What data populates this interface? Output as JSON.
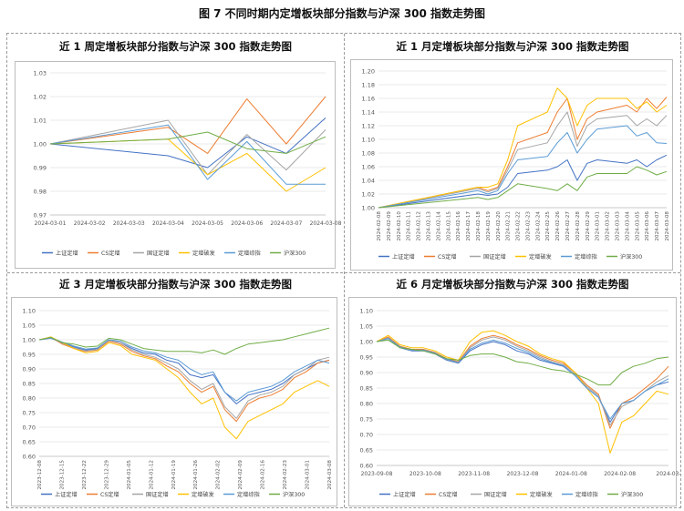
{
  "figure_title": "图 7 不同时期内定增板块部分指数与沪深 300 指数走势图",
  "colors": {
    "上证定增": "#4472c4",
    "CS定增": "#ed7d31",
    "国证定增": "#a5a5a5",
    "定增破发": "#ffc000",
    "定增综指": "#5b9bd5",
    "沪深300": "#70ad47"
  },
  "legend": [
    "上证定增",
    "CS定增",
    "国证定增",
    "定增破发",
    "定增综指",
    "沪深300"
  ],
  "panels": [
    {
      "title": "近 1 周定增板块部分指数与沪深 300 指数走势图",
      "chart_data": {
        "type": "line",
        "x": [
          "2024-03-01",
          "2024-03-02",
          "2024-03-03",
          "2024-03-04",
          "2024-03-05",
          "2024-03-06",
          "2024-03-07",
          "2024-03-08"
        ],
        "x_ticks": [
          "2024-03-01",
          "2024-03-02",
          "2024-03-03",
          "2024-03-04",
          "2024-03-05",
          "2024-03-06",
          "2024-03-07",
          "2024-03-08"
        ],
        "ylim": [
          0.97,
          1.03
        ],
        "y_ticks": [
          0.97,
          0.98,
          0.99,
          1.0,
          1.01,
          1.02,
          1.03
        ],
        "y_decimals": 2,
        "series": [
          {
            "name": "上证定增",
            "values": [
              1.0,
              null,
              null,
              0.995,
              0.99,
              1.003,
              0.996,
              1.011
            ]
          },
          {
            "name": "CS定增",
            "values": [
              1.0,
              null,
              null,
              1.007,
              0.996,
              1.019,
              1.0,
              1.02
            ]
          },
          {
            "name": "国证定增",
            "values": [
              1.0,
              null,
              null,
              1.01,
              0.987,
              1.004,
              0.989,
              1.006
            ]
          },
          {
            "name": "定增破发",
            "values": [
              1.0,
              null,
              null,
              1.002,
              0.987,
              0.996,
              0.98,
              0.99
            ]
          },
          {
            "name": "定增综指",
            "values": [
              1.0,
              null,
              null,
              1.008,
              0.985,
              1.001,
              0.983,
              0.983
            ]
          },
          {
            "name": "沪深300",
            "values": [
              1.0,
              null,
              null,
              1.002,
              1.005,
              0.998,
              0.996,
              1.003
            ]
          }
        ],
        "legend_position": "bottom"
      }
    },
    {
      "title": "近 1 月定增板块部分指数与沪深 300 指数走势图",
      "chart_data": {
        "type": "line",
        "x": [
          "2024-02-08",
          "2024-02-09",
          "2024-02-10",
          "2024-02-11",
          "2024-02-12",
          "2024-02-13",
          "2024-02-14",
          "2024-02-15",
          "2024-02-16",
          "2024-02-17",
          "2024-02-18",
          "2024-02-19",
          "2024-02-20",
          "2024-02-21",
          "2024-02-22",
          "2024-02-23",
          "2024-02-24",
          "2024-02-25",
          "2024-02-26",
          "2024-02-27",
          "2024-02-28",
          "2024-02-29",
          "2024-03-01",
          "2024-03-02",
          "2024-03-03",
          "2024-03-04",
          "2024-03-05",
          "2024-03-06",
          "2024-03-07",
          "2024-03-08"
        ],
        "x_ticks": [
          "2024-02-08",
          "2024-02-09",
          "2024-02-10",
          "2024-02-11",
          "2024-02-12",
          "2024-02-13",
          "2024-02-14",
          "2024-02-15",
          "2024-02-16",
          "2024-02-17",
          "2024-02-18",
          "2024-02-19",
          "2024-02-20",
          "2024-02-21",
          "2024-02-22",
          "2024-02-23",
          "2024-02-24",
          "2024-02-25",
          "2024-02-26",
          "2024-02-27",
          "2024-02-28",
          "2024-02-29",
          "2024-03-01",
          "2024-03-02",
          "2024-03-03",
          "2024-03-04",
          "2024-03-05",
          "2024-03-06",
          "2024-03-07",
          "2024-03-08"
        ],
        "ylim": [
          1.0,
          1.2
        ],
        "y_ticks": [
          1.0,
          1.02,
          1.04,
          1.06,
          1.08,
          1.1,
          1.12,
          1.14,
          1.16,
          1.18,
          1.2
        ],
        "y_decimals": 2,
        "series": [
          {
            "name": "上证定增",
            "values": [
              1.0,
              null,
              null,
              null,
              null,
              null,
              null,
              null,
              null,
              null,
              1.02,
              1.018,
              1.02,
              1.03,
              1.05,
              null,
              null,
              1.055,
              1.06,
              1.07,
              1.04,
              1.065,
              1.07,
              null,
              null,
              1.065,
              1.07,
              1.06,
              1.07,
              1.077
            ]
          },
          {
            "name": "CS定增",
            "values": [
              1.0,
              null,
              null,
              null,
              null,
              null,
              null,
              null,
              null,
              null,
              1.03,
              1.025,
              1.03,
              1.06,
              1.095,
              null,
              null,
              1.11,
              1.14,
              1.16,
              1.1,
              1.13,
              1.14,
              null,
              null,
              1.15,
              1.14,
              1.16,
              1.145,
              1.162
            ]
          },
          {
            "name": "国证定增",
            "values": [
              1.0,
              null,
              null,
              null,
              null,
              null,
              null,
              null,
              null,
              null,
              1.028,
              1.023,
              1.028,
              1.055,
              1.085,
              null,
              null,
              1.095,
              1.12,
              1.14,
              1.09,
              1.12,
              1.13,
              null,
              null,
              1.135,
              1.12,
              1.13,
              1.12,
              1.135
            ]
          },
          {
            "name": "定增破发",
            "values": [
              1.0,
              null,
              null,
              null,
              null,
              null,
              null,
              null,
              null,
              null,
              1.03,
              1.03,
              1.035,
              1.07,
              1.12,
              null,
              null,
              1.14,
              1.175,
              1.16,
              1.12,
              1.15,
              1.16,
              null,
              null,
              1.16,
              1.145,
              1.155,
              1.14,
              1.15
            ]
          },
          {
            "name": "定增综指",
            "values": [
              1.0,
              null,
              null,
              null,
              null,
              null,
              null,
              null,
              null,
              null,
              1.025,
              1.02,
              1.025,
              1.05,
              1.07,
              null,
              null,
              1.075,
              1.095,
              1.11,
              1.08,
              1.1,
              1.115,
              null,
              null,
              1.12,
              1.105,
              1.11,
              1.095,
              1.094
            ]
          },
          {
            "name": "沪深300",
            "values": [
              1.0,
              null,
              null,
              null,
              null,
              null,
              null,
              null,
              null,
              null,
              1.015,
              1.012,
              1.015,
              1.025,
              1.035,
              null,
              null,
              1.028,
              1.025,
              1.035,
              1.025,
              1.045,
              1.05,
              null,
              null,
              1.05,
              1.06,
              1.055,
              1.048,
              1.053
            ]
          }
        ],
        "legend_position": "bottom"
      }
    },
    {
      "title": "近 3 月定增板块部分指数与沪深 300 指数走势图",
      "chart_data": {
        "type": "line",
        "x_ticks": [
          "2023-12-08",
          "2023-12-15",
          "2023-12-22",
          "2023-12-29",
          "2024-01-05",
          "2024-01-12",
          "2024-01-19",
          "2024-01-26",
          "2024-02-02",
          "2024-02-09",
          "2024-02-16",
          "2024-02-23",
          "2024-03-01",
          "2024-03-08"
        ],
        "ylim": [
          0.6,
          1.1
        ],
        "y_ticks": [
          0.6,
          0.65,
          0.7,
          0.75,
          0.8,
          0.85,
          0.9,
          0.95,
          1.0,
          1.05,
          1.1
        ],
        "y_decimals": 2,
        "series": [
          {
            "name": "上证定增",
            "values": [
              1.0,
              1.005,
              0.99,
              0.975,
              0.965,
              0.97,
              1.0,
              0.99,
              0.97,
              0.955,
              0.95,
              0.93,
              0.92,
              0.88,
              0.87,
              0.88,
              0.82,
              0.78,
              0.81,
              0.82,
              0.83,
              0.85,
              0.88,
              0.9,
              0.92,
              0.93
            ]
          },
          {
            "name": "CS定增",
            "values": [
              1.0,
              1.008,
              0.985,
              0.97,
              0.96,
              0.965,
              0.995,
              0.985,
              0.96,
              0.945,
              0.935,
              0.91,
              0.89,
              0.85,
              0.82,
              0.84,
              0.76,
              0.72,
              0.78,
              0.8,
              0.81,
              0.83,
              0.87,
              0.89,
              0.92,
              0.93
            ]
          },
          {
            "name": "国证定增",
            "values": [
              1.0,
              1.007,
              0.988,
              0.972,
              0.962,
              0.967,
              0.998,
              0.99,
              0.965,
              0.95,
              0.94,
              0.92,
              0.9,
              0.86,
              0.83,
              0.85,
              0.77,
              0.73,
              0.79,
              0.81,
              0.82,
              0.84,
              0.88,
              0.9,
              0.93,
              0.94
            ]
          },
          {
            "name": "定增破发",
            "values": [
              1.0,
              1.01,
              0.99,
              0.97,
              0.955,
              0.96,
              0.99,
              0.98,
              0.95,
              0.94,
              0.93,
              0.9,
              0.87,
              0.82,
              0.78,
              0.8,
              0.7,
              0.66,
              0.72,
              0.74,
              0.76,
              0.78,
              0.82,
              0.84,
              0.86,
              0.84
            ]
          },
          {
            "name": "定增综指",
            "values": [
              1.0,
              1.006,
              0.992,
              0.978,
              0.968,
              0.972,
              1.0,
              0.995,
              0.975,
              0.962,
              0.955,
              0.94,
              0.93,
              0.9,
              0.88,
              0.89,
              0.82,
              0.79,
              0.82,
              0.83,
              0.84,
              0.86,
              0.89,
              0.91,
              0.93,
              0.92
            ]
          },
          {
            "name": "沪深300",
            "values": [
              1.0,
              1.008,
              0.99,
              0.985,
              0.975,
              0.978,
              1.005,
              1.0,
              0.985,
              0.97,
              0.965,
              0.96,
              0.96,
              0.96,
              0.955,
              0.965,
              0.95,
              0.97,
              0.985,
              0.99,
              0.995,
              1.0,
              1.01,
              1.02,
              1.03,
              1.04
            ]
          }
        ],
        "legend_position": "bottom"
      }
    },
    {
      "title": "近 6 月定增板块部分指数与沪深 300 指数走势图",
      "chart_data": {
        "type": "line",
        "x_ticks": [
          "2023-09-08",
          "2023-10-08",
          "2023-11-08",
          "2023-12-08",
          "2024-01-08",
          "2024-02-08",
          "2024-03-"
        ],
        "ylim": [
          0.6,
          1.1
        ],
        "y_ticks": [
          0.6,
          0.65,
          0.7,
          0.75,
          0.8,
          0.85,
          0.9,
          0.95,
          1.0,
          1.05,
          1.1
        ],
        "y_decimals": 2,
        "series": [
          {
            "name": "上证定增",
            "values": [
              1.0,
              1.01,
              0.98,
              0.97,
              0.97,
              0.96,
              0.94,
              0.93,
              0.97,
              0.99,
              1.0,
              0.99,
              0.97,
              0.96,
              0.94,
              0.93,
              0.92,
              0.89,
              0.85,
              0.82,
              0.74,
              0.8,
              0.81,
              0.84,
              0.86,
              0.87
            ]
          },
          {
            "name": "CS定增",
            "values": [
              1.0,
              1.015,
              0.985,
              0.975,
              0.975,
              0.965,
              0.945,
              0.935,
              0.985,
              1.01,
              1.02,
              1.01,
              0.99,
              0.975,
              0.955,
              0.94,
              0.93,
              0.9,
              0.86,
              0.83,
              0.72,
              0.8,
              0.82,
              0.85,
              0.88,
              0.92
            ]
          },
          {
            "name": "国证定增",
            "values": [
              1.0,
              1.012,
              0.982,
              0.972,
              0.972,
              0.962,
              0.942,
              0.932,
              0.98,
              1.005,
              1.015,
              1.005,
              0.985,
              0.97,
              0.95,
              0.935,
              0.925,
              0.895,
              0.855,
              0.825,
              0.73,
              0.79,
              0.81,
              0.84,
              0.87,
              0.89
            ]
          },
          {
            "name": "定增破发",
            "values": [
              1.0,
              1.02,
              0.99,
              0.98,
              0.98,
              0.97,
              0.95,
              0.94,
              1.0,
              1.03,
              1.035,
              1.02,
              1.0,
              0.985,
              0.96,
              0.945,
              0.935,
              0.9,
              0.85,
              0.8,
              0.64,
              0.74,
              0.76,
              0.8,
              0.84,
              0.83
            ]
          },
          {
            "name": "定增综指",
            "values": [
              1.0,
              1.01,
              0.983,
              0.973,
              0.973,
              0.963,
              0.943,
              0.933,
              0.975,
              0.995,
              1.005,
              0.995,
              0.978,
              0.965,
              0.945,
              0.932,
              0.922,
              0.89,
              0.85,
              0.82,
              0.75,
              0.8,
              0.81,
              0.84,
              0.86,
              0.88
            ]
          },
          {
            "name": "沪深300",
            "values": [
              1.0,
              1.005,
              0.98,
              0.975,
              0.97,
              0.96,
              0.945,
              0.94,
              0.955,
              0.96,
              0.96,
              0.95,
              0.935,
              0.93,
              0.92,
              0.91,
              0.905,
              0.895,
              0.88,
              0.86,
              0.86,
              0.9,
              0.92,
              0.93,
              0.945,
              0.95
            ]
          }
        ],
        "legend_position": "bottom"
      }
    }
  ]
}
